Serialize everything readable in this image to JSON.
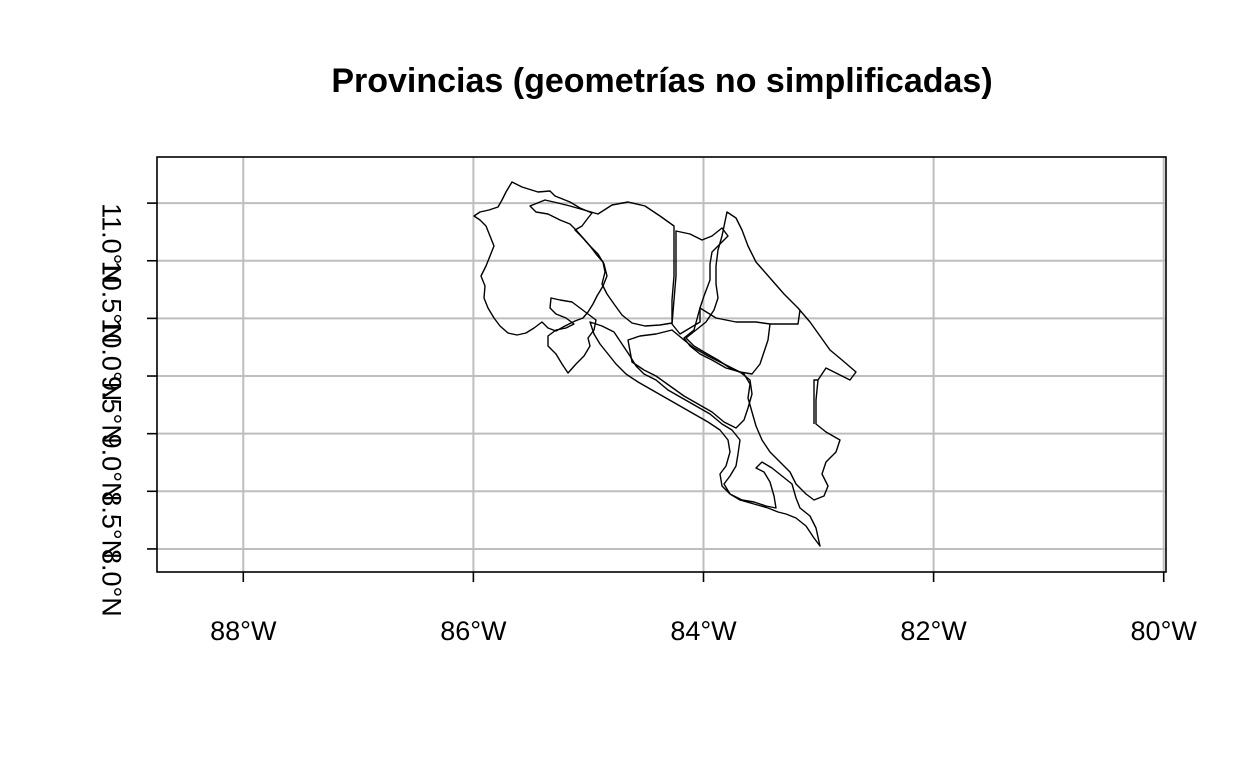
{
  "chart_data": {
    "type": "map",
    "title": "Provincias (geometrías no simplificadas)",
    "xlim": [
      -88.75,
      -79.98
    ],
    "ylim": [
      7.8,
      11.4
    ],
    "grid": true,
    "x_ticks": [
      {
        "value": -88,
        "label": "88°W"
      },
      {
        "value": -86,
        "label": "86°W"
      },
      {
        "value": -84,
        "label": "84°W"
      },
      {
        "value": -82,
        "label": "82°W"
      },
      {
        "value": -80,
        "label": "80°W"
      }
    ],
    "y_ticks": [
      {
        "value": 8.0,
        "label": "8.0°N"
      },
      {
        "value": 8.5,
        "label": "8.5°N"
      },
      {
        "value": 9.0,
        "label": "9.0°N"
      },
      {
        "value": 9.5,
        "label": "9.5°N"
      },
      {
        "value": 10.0,
        "label": "10.0°N"
      },
      {
        "value": 10.5,
        "label": "10.5°N"
      },
      {
        "value": 11.0,
        "label": "11.0°N"
      }
    ]
  }
}
